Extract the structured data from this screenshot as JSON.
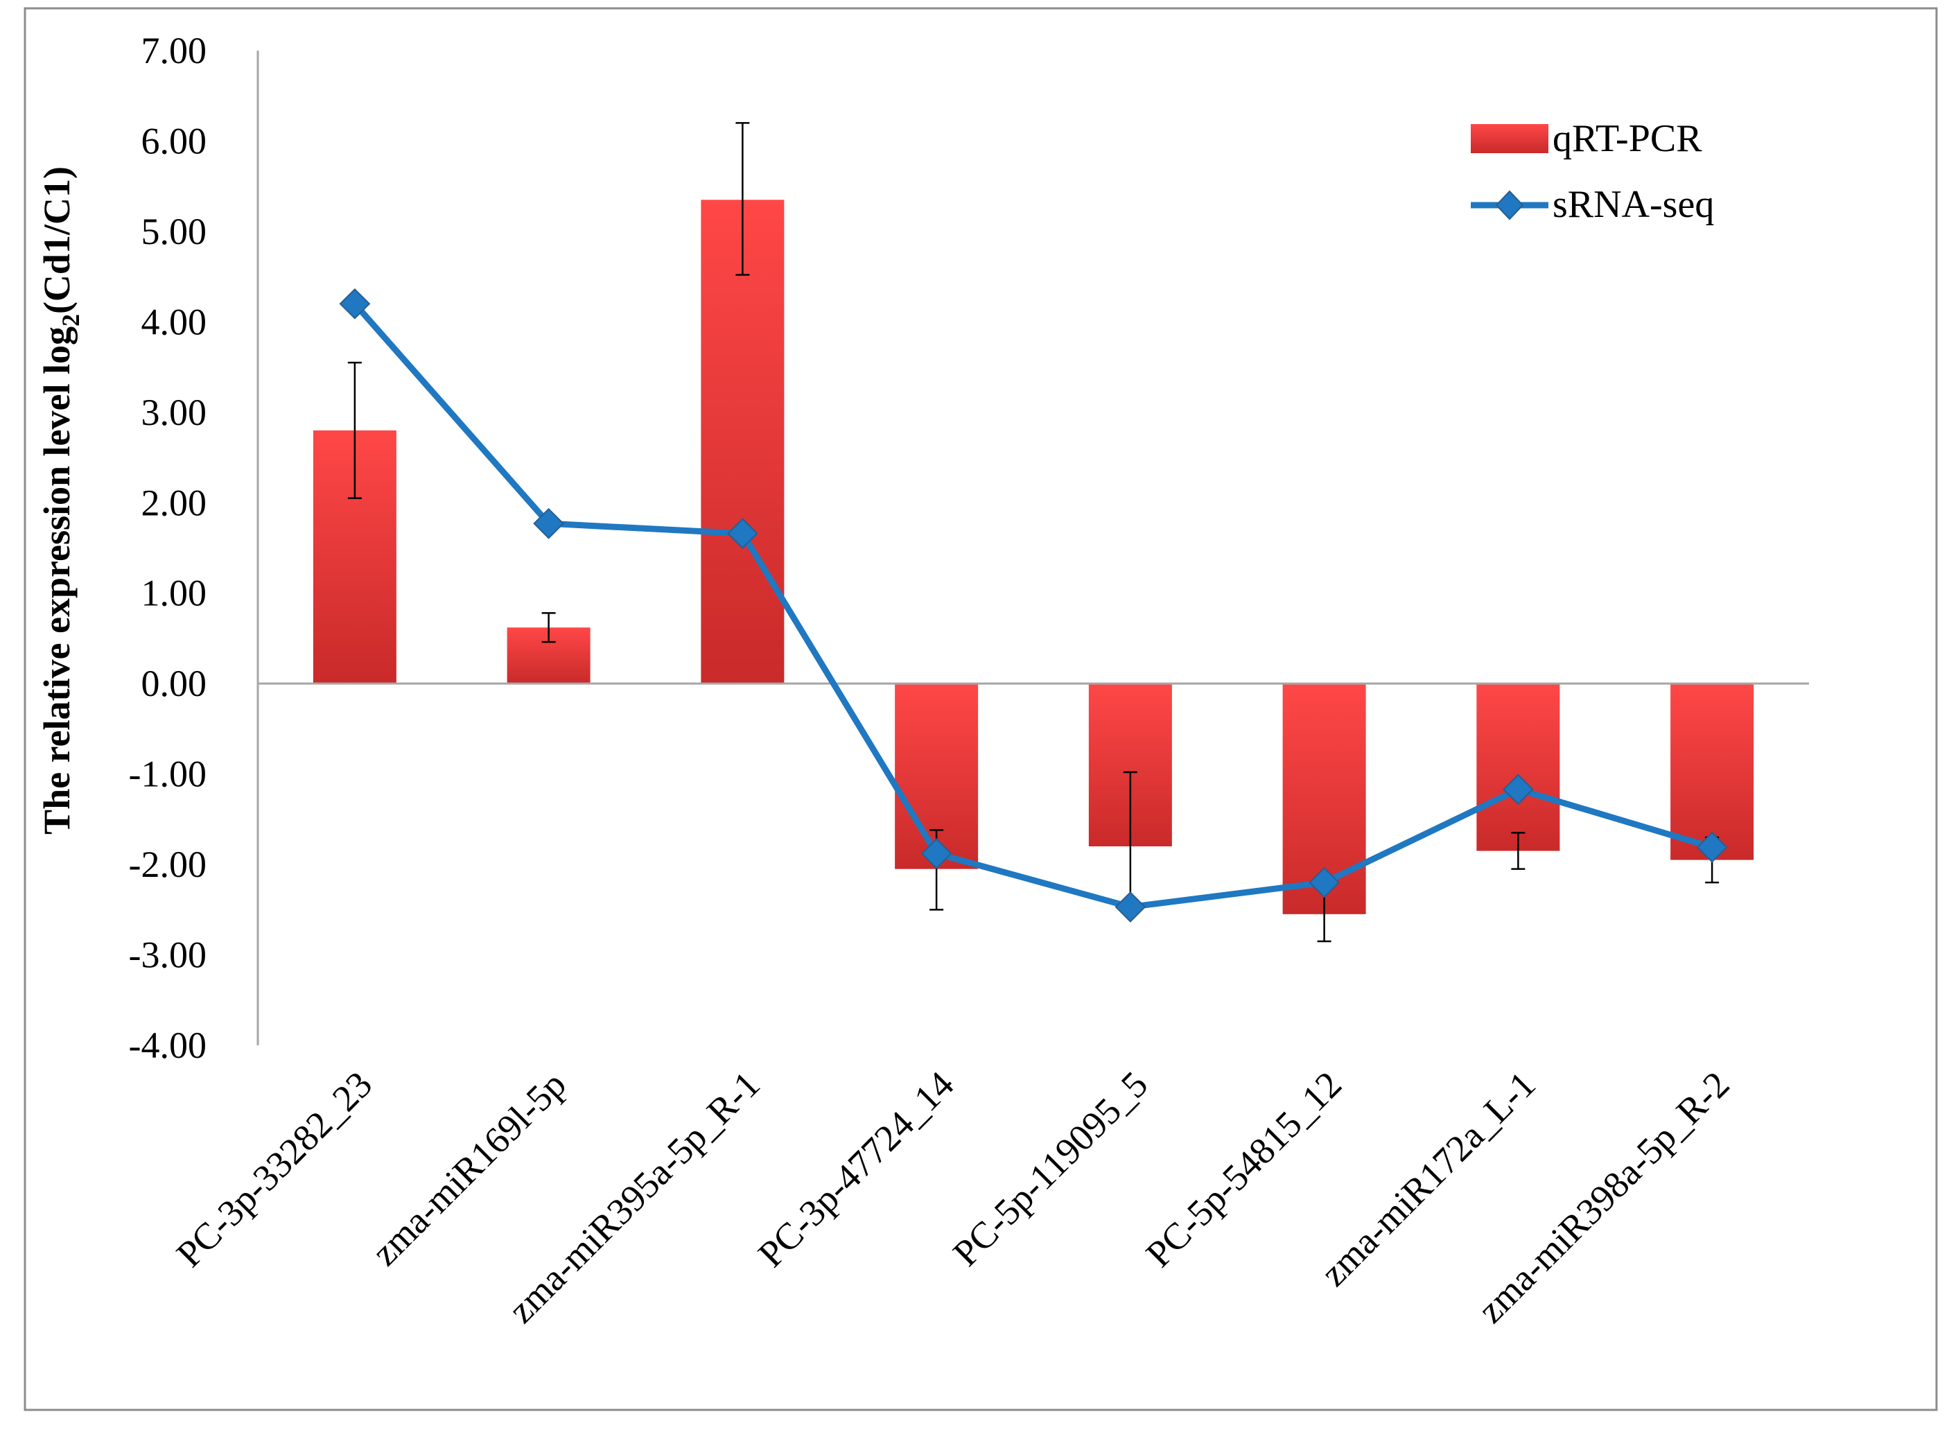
{
  "chart_data": {
    "type": "bar",
    "title": "",
    "xlabel": "",
    "ylabel": {
      "prefix": "The relative expression level log",
      "subscript": "2",
      "suffix": "(Cd1/C1)"
    },
    "ylim": [
      -4.0,
      7.0
    ],
    "ytick_step": 1.0,
    "ytick_labels": [
      "7.00",
      "6.00",
      "5.00",
      "4.00",
      "3.00",
      "2.00",
      "1.00",
      "0.00",
      "-1.00",
      "-2.00",
      "-3.00",
      "-4.00"
    ],
    "grid": false,
    "legend_position": "top-right",
    "categories": [
      "PC-3p-33282_23",
      "zma-miR169l-5p",
      "zma-miR395a-5p_R-1",
      "PC-3p-47724_14",
      "PC-5p-119095_5",
      "PC-5p-54815_12",
      "zma-miR172a_L-1",
      "zma-miR398a-5p_R-2"
    ],
    "series": [
      {
        "name": "qRT-PCR",
        "type": "bar",
        "color": "#e83a3a",
        "values": [
          2.8,
          0.62,
          5.35,
          -2.05,
          -1.8,
          -2.55,
          -1.85,
          -1.95
        ],
        "error_low": [
          2.05,
          0.46,
          4.52,
          -2.5,
          -2.5,
          -2.85,
          -2.05,
          -2.2
        ],
        "error_high": [
          3.55,
          0.78,
          6.2,
          -1.62,
          -0.98,
          -2.2,
          -1.65,
          -1.7
        ]
      },
      {
        "name": "sRNA-seq",
        "type": "line",
        "color": "#1f78c1",
        "marker": "diamond",
        "values": [
          4.2,
          1.77,
          1.66,
          -1.88,
          -2.47,
          -2.2,
          -1.17,
          -1.81
        ]
      }
    ]
  }
}
